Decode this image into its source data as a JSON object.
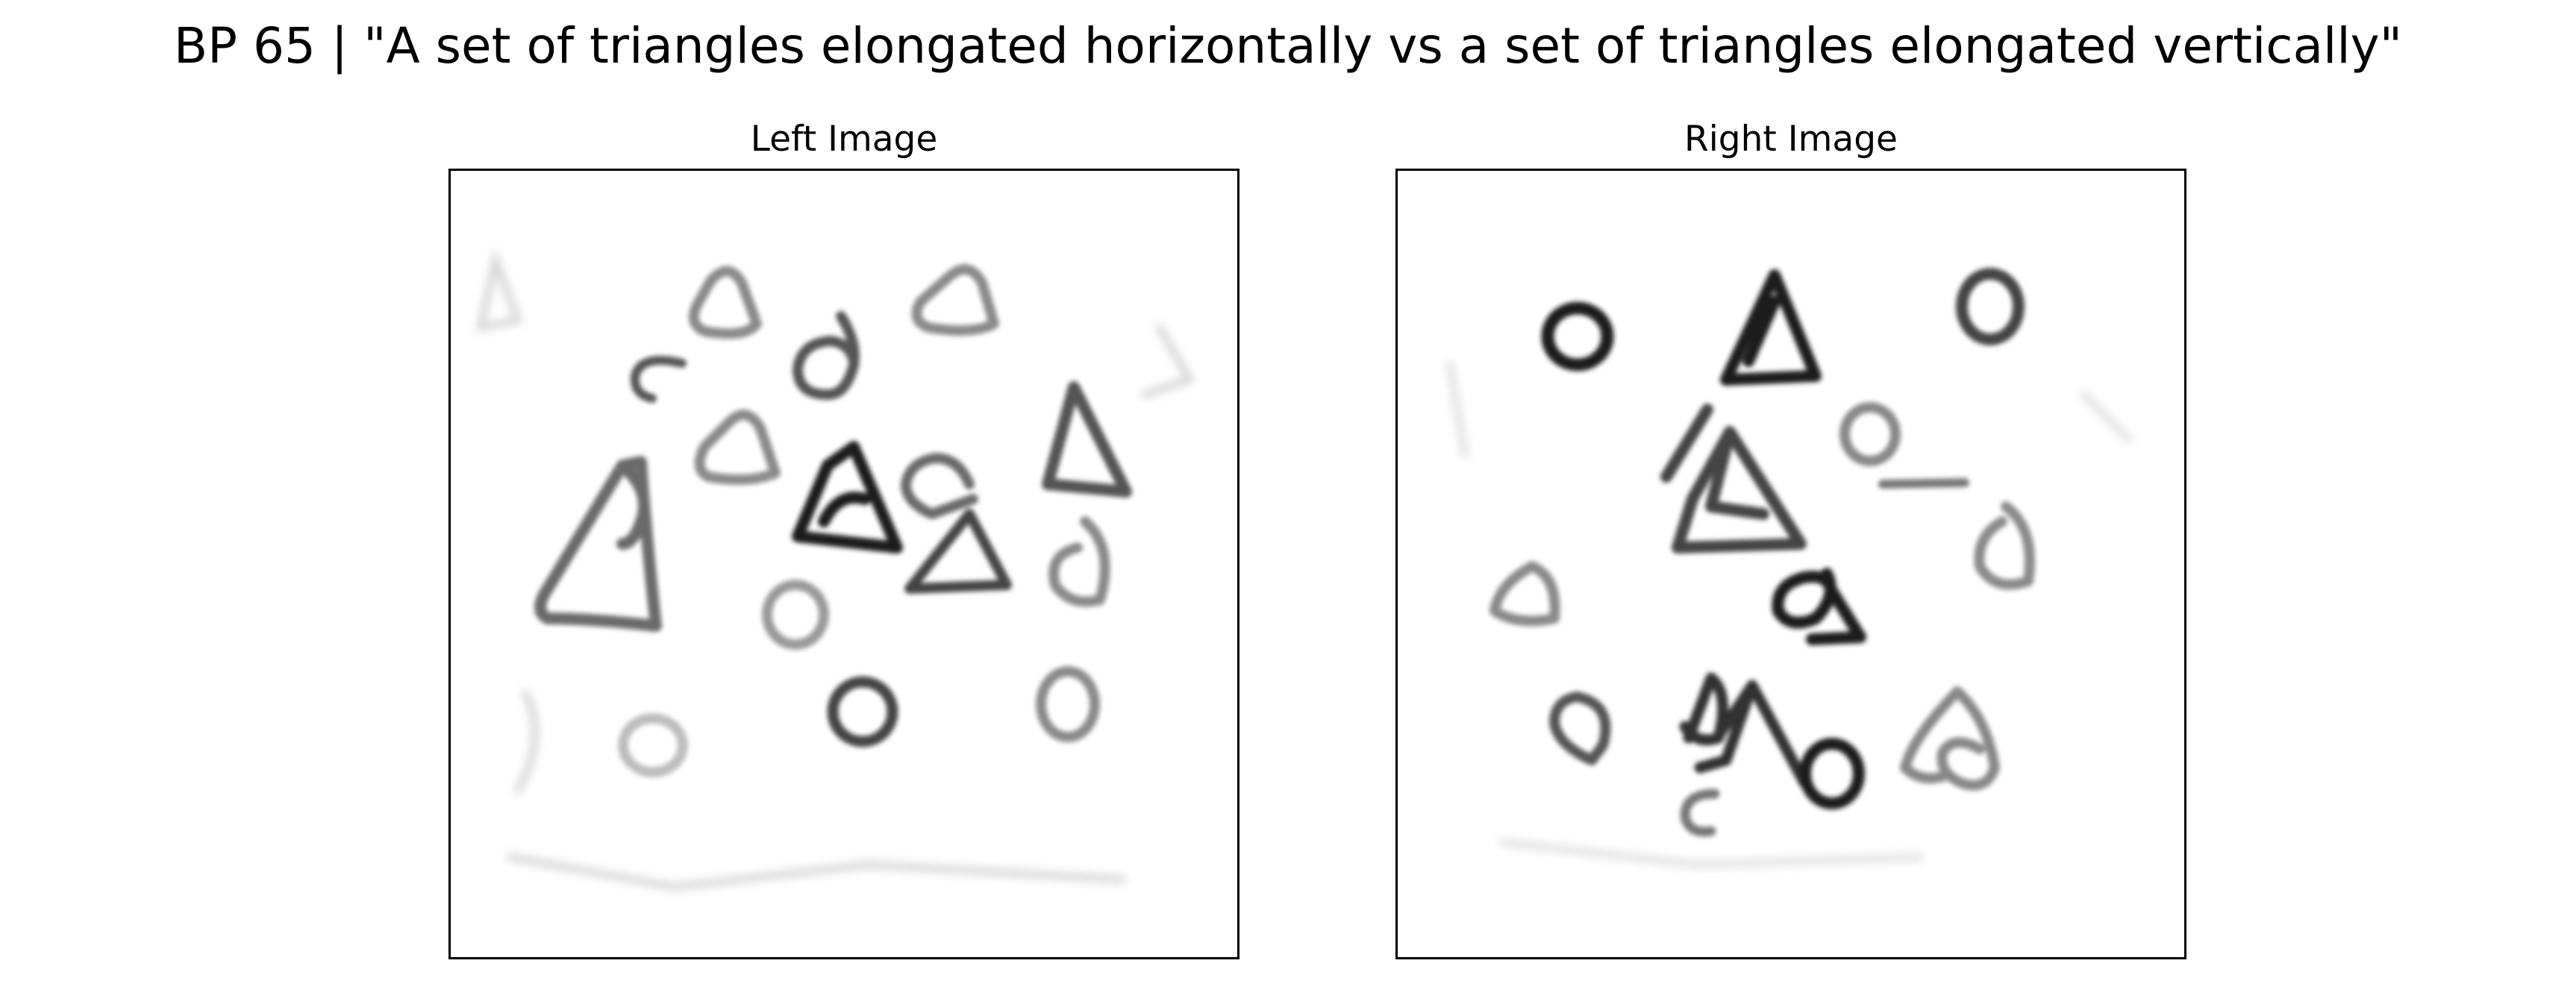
{
  "figure": {
    "title": "BP 65 | \"A set of triangles elongated horizontally vs a set of triangles elongated vertically\""
  },
  "panels": {
    "left": {
      "title": "Left Image",
      "content": "blurred hand-drawn triangles and circles"
    },
    "right": {
      "title": "Right Image",
      "content": "blurred hand-drawn triangles and circles"
    }
  },
  "colors": {
    "ink_dark": "#1a1a1a",
    "ink_mid": "#555555",
    "ink_light": "#8c8c8c",
    "ink_faint": "#c8c8c8",
    "frame": "#000000",
    "background": "#ffffff"
  }
}
